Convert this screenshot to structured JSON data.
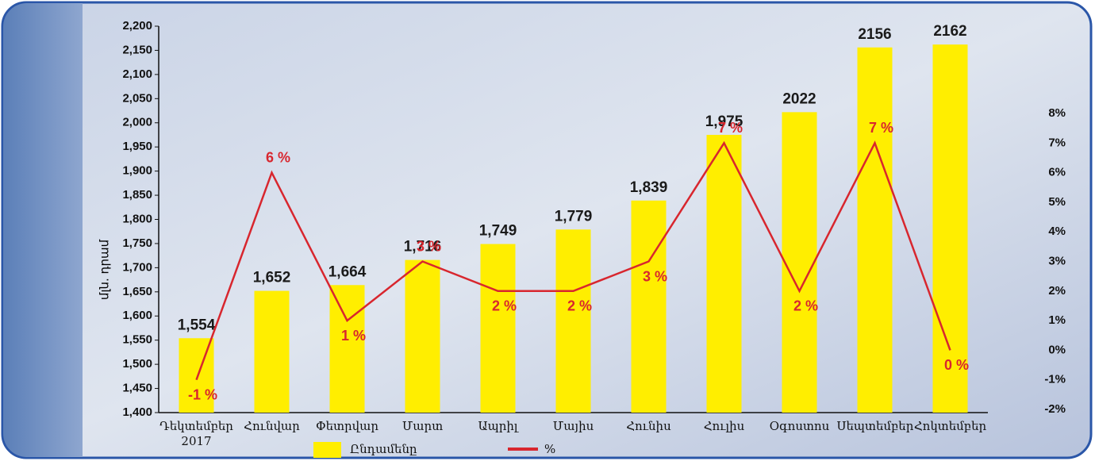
{
  "chart_data": {
    "type": "bar_line",
    "y_label": "մլն. դրամ",
    "categories": [
      "Դեկտեմբեր 2017",
      "Հունվար",
      "Փետրվար",
      "Մարտ",
      "Ապրիլ",
      "Մայիս",
      "Հունիս",
      "Հուլիս",
      "Օգոստոս",
      "Սեպտեմբեր",
      "Հոկտեմբեր"
    ],
    "series": [
      {
        "name": "Ընդամենը",
        "color": "#ffee00",
        "type": "bar",
        "values": [
          1554,
          1652,
          1664,
          1716,
          1749,
          1779,
          1839,
          1975,
          2022,
          2156,
          2162
        ],
        "value_labels": [
          "1,554",
          "1,652",
          "1,664",
          "1,716",
          "1,749",
          "1,779",
          "1,839",
          "1,975",
          "2022",
          "2156",
          "2162"
        ]
      },
      {
        "name": "%",
        "color": "#d8262e",
        "type": "line",
        "axis": "y2",
        "values": [
          -1,
          6,
          1,
          3,
          2,
          2,
          3,
          7,
          2,
          7,
          0
        ],
        "value_labels": [
          "-1 %",
          "6 %",
          "1 %",
          "3 %",
          "2 %",
          "2 %",
          "3 %",
          "7 %",
          "2 %",
          "7 %",
          "0 %"
        ]
      }
    ],
    "ylim": [
      1400,
      2200
    ],
    "yticks": [
      {
        "value": 1400,
        "label": "1,400"
      },
      {
        "value": 1450,
        "label": "1,450"
      },
      {
        "value": 1500,
        "label": "1,500"
      },
      {
        "value": 1550,
        "label": "1,550"
      },
      {
        "value": 1600,
        "label": "1,600"
      },
      {
        "value": 1650,
        "label": "1,650"
      },
      {
        "value": 1700,
        "label": "1,700"
      },
      {
        "value": 1750,
        "label": "1,750"
      },
      {
        "value": 1800,
        "label": "1,800"
      },
      {
        "value": 1850,
        "label": "1,850"
      },
      {
        "value": 1900,
        "label": "1,900"
      },
      {
        "value": 1950,
        "label": "1,950"
      },
      {
        "value": 2000,
        "label": "2,000"
      },
      {
        "value": 2050,
        "label": "2,050"
      },
      {
        "value": 2100,
        "label": "2,100"
      },
      {
        "value": 2150,
        "label": "2,150"
      },
      {
        "value": 2200,
        "label": "2,200"
      }
    ],
    "y2lim": [
      -2,
      8
    ],
    "y2ticks": [
      {
        "value": -2,
        "label": "-2%"
      },
      {
        "value": -1,
        "label": "-1%"
      },
      {
        "value": 0,
        "label": "0%"
      },
      {
        "value": 1,
        "label": "1%"
      },
      {
        "value": 2,
        "label": "2%"
      },
      {
        "value": 3,
        "label": "3%"
      },
      {
        "value": 4,
        "label": "4%"
      },
      {
        "value": 5,
        "label": "5%"
      },
      {
        "value": 6,
        "label": "6%"
      },
      {
        "value": 7,
        "label": "7%"
      },
      {
        "value": 8,
        "label": "8%"
      }
    ],
    "legend": "bottom"
  }
}
